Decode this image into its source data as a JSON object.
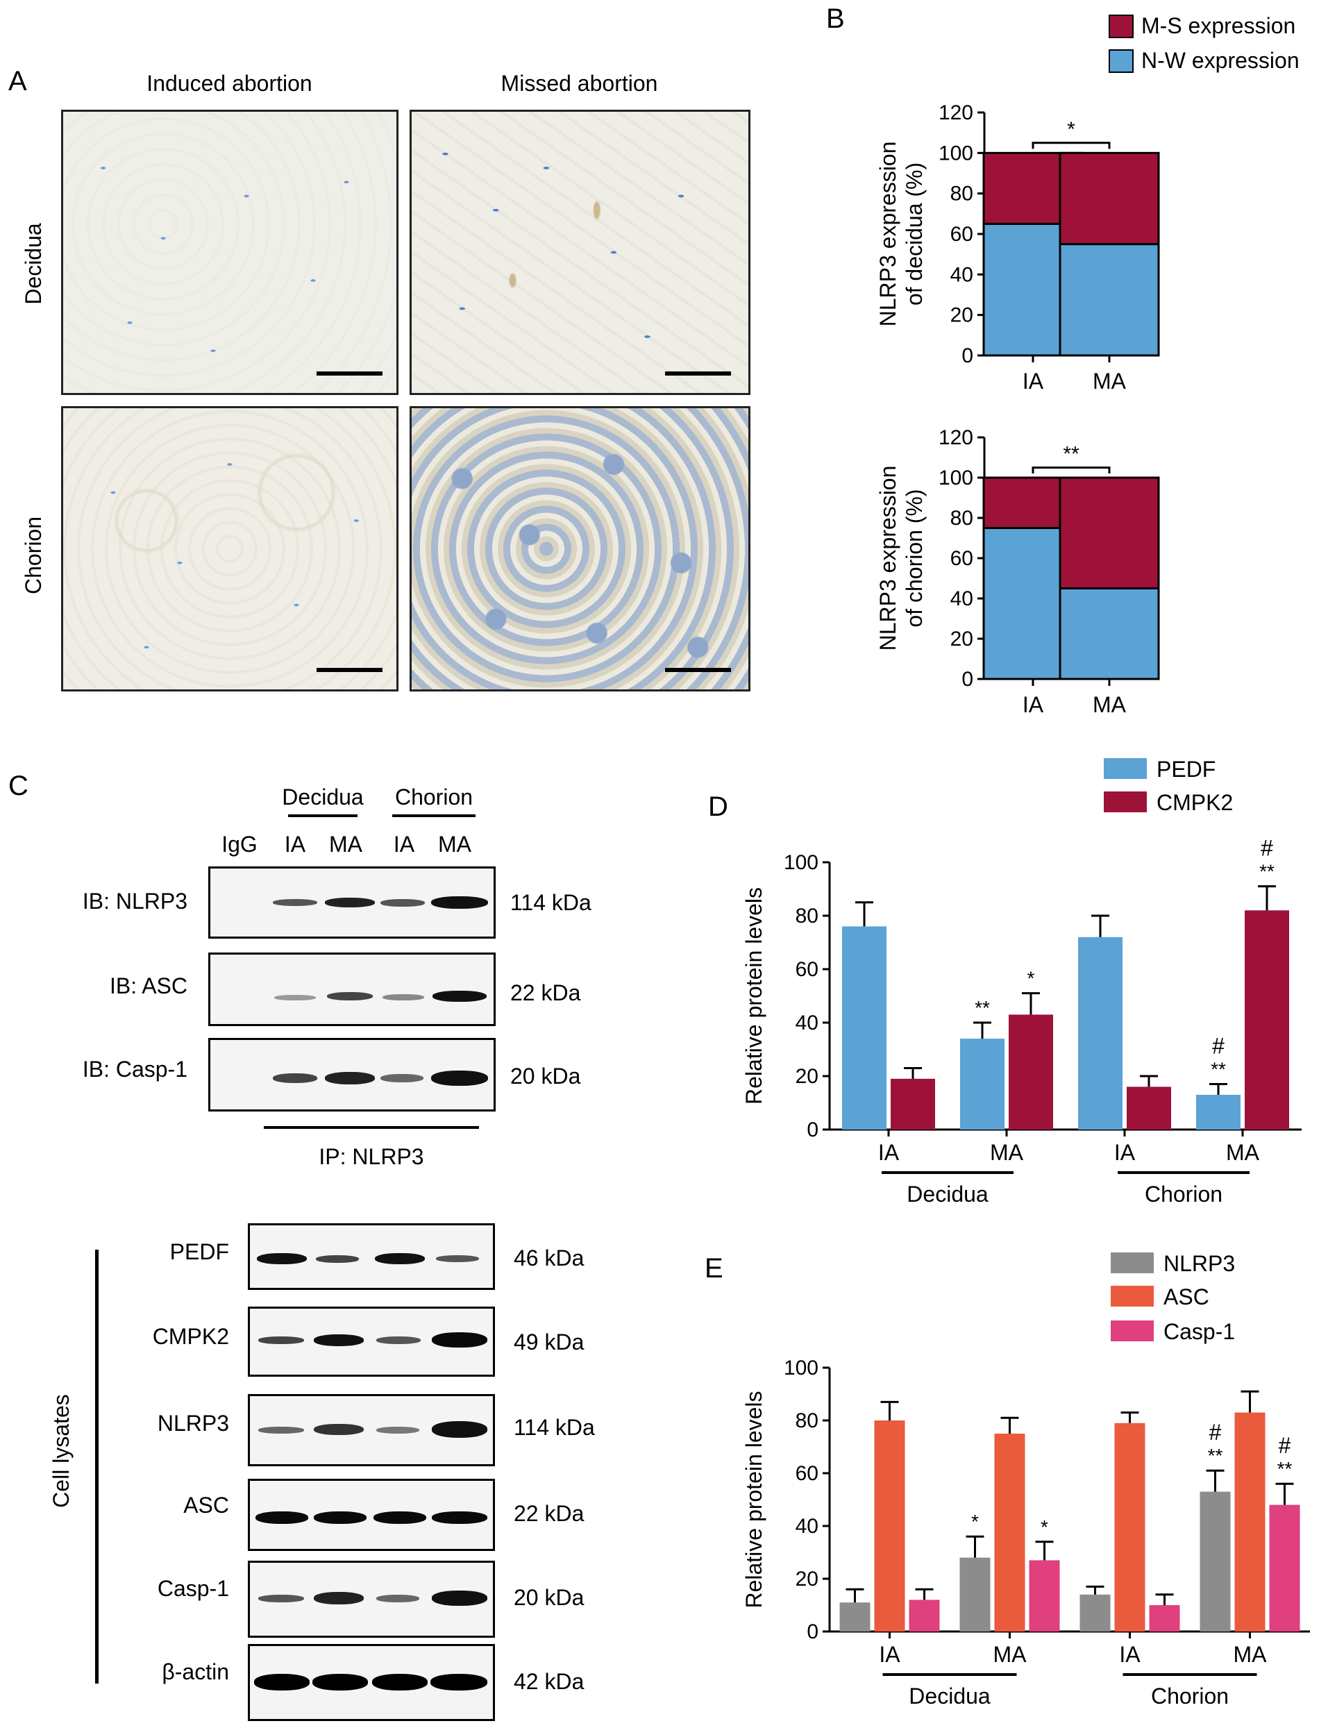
{
  "panels": {
    "A": "A",
    "B": "B",
    "C": "C",
    "D": "D",
    "E": "E"
  },
  "panel_a": {
    "col_headers": [
      "Induced abortion",
      "Missed abortion"
    ],
    "row_labels": [
      "Decidua",
      "Chorion"
    ]
  },
  "panel_c": {
    "group_labels": [
      "Decidua",
      "Chorion"
    ],
    "lanes": [
      "IgG",
      "IA",
      "MA",
      "IA",
      "MA"
    ],
    "ip_blots": [
      {
        "name": "IB: NLRP3",
        "kda": "114 kDa"
      },
      {
        "name": "IB: ASC",
        "kda": "22 kDa"
      },
      {
        "name": "IB: Casp-1",
        "kda": "20 kDa"
      }
    ],
    "ip_label": "IP: NLRP3",
    "lysate_label": "Cell lysates",
    "lysate_blots": [
      {
        "name": "PEDF",
        "kda": "46 kDa"
      },
      {
        "name": "CMPK2",
        "kda": "49 kDa"
      },
      {
        "name": "NLRP3",
        "kda": "114 kDa"
      },
      {
        "name": "ASC",
        "kda": "22 kDa"
      },
      {
        "name": "Casp-1",
        "kda": "20 kDa"
      },
      {
        "name": "β-actin",
        "kda": "42 kDa"
      }
    ]
  },
  "chart_data": [
    {
      "id": "B_top",
      "type": "bar",
      "stacked": true,
      "categories": [
        "IA",
        "MA"
      ],
      "series": [
        {
          "name": "N-W expression",
          "values": [
            65,
            55
          ],
          "color": "#5ba3d5"
        },
        {
          "name": "M-S expression",
          "values": [
            35,
            45
          ],
          "color": "#9e1239"
        }
      ],
      "ylabel": [
        "NLRP3 expression",
        "of decidua (%)"
      ],
      "ylim": [
        0,
        120
      ],
      "yticks": [
        0,
        20,
        40,
        60,
        80,
        100,
        120
      ],
      "significance": "*"
    },
    {
      "id": "B_bottom",
      "type": "bar",
      "stacked": true,
      "categories": [
        "IA",
        "MA"
      ],
      "series": [
        {
          "name": "N-W expression",
          "values": [
            75,
            45
          ],
          "color": "#5ba3d5"
        },
        {
          "name": "M-S expression",
          "values": [
            25,
            55
          ],
          "color": "#9e1239"
        }
      ],
      "ylabel": [
        "NLRP3 expression",
        "of chorion (%)"
      ],
      "ylim": [
        0,
        120
      ],
      "yticks": [
        0,
        20,
        40,
        60,
        80,
        100,
        120
      ],
      "significance": "**"
    },
    {
      "id": "D",
      "type": "bar",
      "categories": [
        "IA",
        "MA",
        "IA",
        "MA"
      ],
      "groups": [
        "Decidua",
        "Chorion"
      ],
      "series": [
        {
          "name": "PEDF",
          "values": [
            76,
            34,
            72,
            13
          ],
          "errors": [
            9,
            6,
            8,
            4
          ],
          "color": "#5ba3d5",
          "annotations": [
            "",
            "**",
            "",
            "#\n**"
          ]
        },
        {
          "name": "CMPK2",
          "values": [
            19,
            43,
            16,
            82
          ],
          "errors": [
            4,
            8,
            4,
            9
          ],
          "color": "#9e1239",
          "annotations": [
            "",
            "*",
            "",
            "#\n**"
          ]
        }
      ],
      "ylabel": "Relative protein levels",
      "ylim": [
        0,
        100
      ],
      "yticks": [
        0,
        20,
        40,
        60,
        80,
        100
      ]
    },
    {
      "id": "E",
      "type": "bar",
      "categories": [
        "IA",
        "MA",
        "IA",
        "MA"
      ],
      "groups": [
        "Decidua",
        "Chorion"
      ],
      "series": [
        {
          "name": "NLRP3",
          "values": [
            11,
            28,
            14,
            53
          ],
          "errors": [
            5,
            8,
            3,
            8
          ],
          "color": "#8c8c8c",
          "annotations": [
            "",
            "*",
            "",
            "#\n**"
          ]
        },
        {
          "name": "ASC",
          "values": [
            80,
            75,
            79,
            83
          ],
          "errors": [
            7,
            6,
            4,
            8
          ],
          "color": "#ea5a3c",
          "annotations": [
            "",
            "",
            "",
            ""
          ]
        },
        {
          "name": "Casp-1",
          "values": [
            12,
            27,
            10,
            48
          ],
          "errors": [
            4,
            7,
            4,
            8
          ],
          "color": "#e0407e",
          "annotations": [
            "",
            "*",
            "",
            "#\n**"
          ]
        }
      ],
      "ylabel": "Relative protein levels",
      "ylim": [
        0,
        100
      ],
      "yticks": [
        0,
        20,
        40,
        60,
        80,
        100
      ]
    }
  ]
}
